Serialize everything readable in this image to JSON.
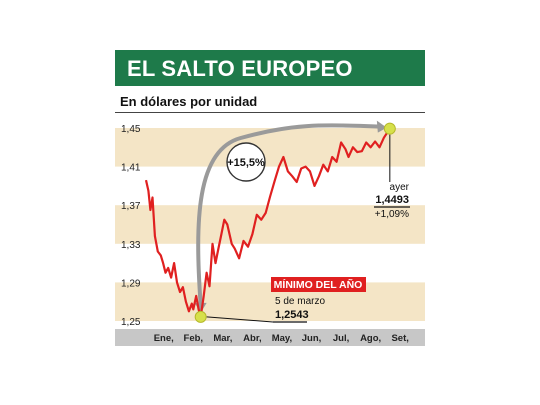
{
  "header": {
    "title": "EL SALTO EUROPEO",
    "subtitle": "En dólares por unidad"
  },
  "colors": {
    "title_bg": "#1e7a4a",
    "band": "#f4e5c6",
    "line": "#e02020",
    "arrow": "#9a9a9a",
    "marker": "#d6e04a",
    "axis_bar": "#c7c7c7",
    "badge": "#e02020"
  },
  "annotations": {
    "change_circle": "+15,5%",
    "min_label": "MÍNIMO DEL AÑO",
    "min_date": "5 de marzo",
    "min_value": "1,2543",
    "last_label": "ayer",
    "last_value": "1,4493",
    "last_change": "+1,09%"
  },
  "chart_data": {
    "type": "line",
    "title": "EL SALTO EUROPEO",
    "subtitle": "En dólares por unidad",
    "xlabel": "",
    "ylabel": "",
    "ylim": [
      1.25,
      1.45
    ],
    "yticks": [
      1.25,
      1.29,
      1.33,
      1.37,
      1.41,
      1.45
    ],
    "ytick_labels": [
      "1,25",
      "1,29",
      "1,33",
      "1,37",
      "1,41",
      "1,45"
    ],
    "xticks": [
      "Ene,",
      "Feb,",
      "Mar,",
      "Abr,",
      "May,",
      "Jun,",
      "Jul,",
      "Ago,",
      "Set,"
    ],
    "grid": false,
    "series": [
      {
        "values": [
          [
            0.0,
            1.396
          ],
          [
            0.08,
            1.385
          ],
          [
            0.15,
            1.365
          ],
          [
            0.22,
            1.378
          ],
          [
            0.3,
            1.338
          ],
          [
            0.4,
            1.322
          ],
          [
            0.5,
            1.318
          ],
          [
            0.58,
            1.31
          ],
          [
            0.66,
            1.3
          ],
          [
            0.75,
            1.305
          ],
          [
            0.85,
            1.295
          ],
          [
            0.95,
            1.31
          ],
          [
            1.05,
            1.29
          ],
          [
            1.15,
            1.28
          ],
          [
            1.25,
            1.285
          ],
          [
            1.35,
            1.27
          ],
          [
            1.45,
            1.26
          ],
          [
            1.55,
            1.268
          ],
          [
            1.6,
            1.262
          ],
          [
            1.7,
            1.276
          ],
          [
            1.78,
            1.262
          ],
          [
            1.85,
            1.2543
          ],
          [
            1.95,
            1.275
          ],
          [
            2.05,
            1.3
          ],
          [
            2.15,
            1.286
          ],
          [
            2.25,
            1.33
          ],
          [
            2.35,
            1.31
          ],
          [
            2.45,
            1.325
          ],
          [
            2.55,
            1.34
          ],
          [
            2.65,
            1.355
          ],
          [
            2.75,
            1.35
          ],
          [
            2.9,
            1.33
          ],
          [
            3.0,
            1.325
          ],
          [
            3.15,
            1.315
          ],
          [
            3.3,
            1.333
          ],
          [
            3.45,
            1.327
          ],
          [
            3.6,
            1.34
          ],
          [
            3.75,
            1.36
          ],
          [
            3.9,
            1.355
          ],
          [
            4.05,
            1.362
          ],
          [
            4.2,
            1.379
          ],
          [
            4.35,
            1.395
          ],
          [
            4.5,
            1.41
          ],
          [
            4.65,
            1.42
          ],
          [
            4.8,
            1.405
          ],
          [
            4.95,
            1.4
          ],
          [
            5.1,
            1.394
          ],
          [
            5.25,
            1.408
          ],
          [
            5.4,
            1.41
          ],
          [
            5.55,
            1.405
          ],
          [
            5.7,
            1.39
          ],
          [
            5.85,
            1.4
          ],
          [
            6.0,
            1.412
          ],
          [
            6.15,
            1.405
          ],
          [
            6.3,
            1.42
          ],
          [
            6.45,
            1.415
          ],
          [
            6.6,
            1.435
          ],
          [
            6.75,
            1.428
          ],
          [
            6.85,
            1.42
          ],
          [
            7.0,
            1.43
          ],
          [
            7.15,
            1.425
          ],
          [
            7.3,
            1.426
          ],
          [
            7.45,
            1.435
          ],
          [
            7.6,
            1.43
          ],
          [
            7.75,
            1.436
          ],
          [
            7.9,
            1.43
          ],
          [
            8.05,
            1.44
          ],
          [
            8.25,
            1.4493
          ]
        ]
      }
    ],
    "min_point": [
      1.85,
      1.2543
    ],
    "last_point": [
      8.25,
      1.4493
    ]
  }
}
